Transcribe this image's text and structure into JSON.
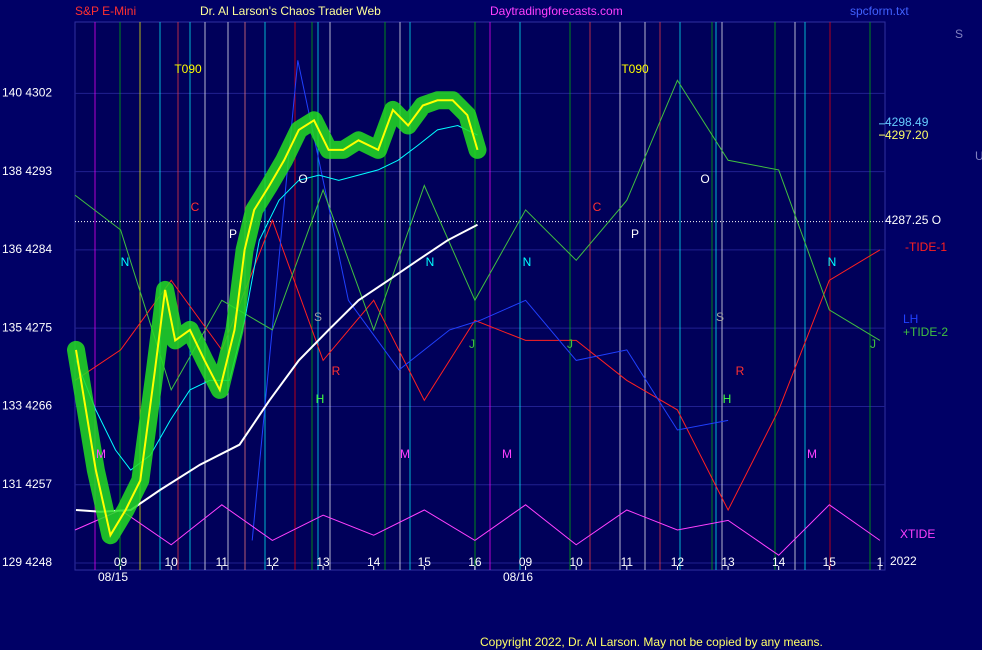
{
  "chart_data": {
    "type": "line",
    "header": [
      "S&P E-Mini",
      "Dr. Al Larson's Chaos Trader Web",
      "Daytradingforecasts.com",
      "spcform.txt"
    ],
    "copyright": "Copyright 2022, Dr. Al Larson. May not be copied by any means.",
    "xlim": [
      8.1,
      24.1
    ],
    "xticks": [
      {
        "value": 9,
        "label": "09"
      },
      10,
      11,
      12,
      13,
      14,
      15,
      16,
      {
        "value": 17,
        "label": "09"
      },
      {
        "value": 18,
        "label": "10"
      },
      {
        "value": 19,
        "label": "11"
      },
      {
        "value": 20,
        "label": "12"
      },
      {
        "value": 21,
        "label": "13"
      },
      {
        "value": 22,
        "label": "14"
      },
      {
        "value": 23,
        "label": "15"
      },
      {
        "value": 24,
        "label": "1"
      }
    ],
    "dates": [
      "08/15",
      "08/16"
    ],
    "year": "2022",
    "ylim": [
      4247.2,
      4310.2
    ],
    "yticks": [
      {
        "value": 4302,
        "label": "140  4302"
      },
      {
        "value": 4293,
        "label": "138  4293"
      },
      {
        "value": 4284,
        "label": "136  4284"
      },
      {
        "value": 4275,
        "label": "135  4275"
      },
      {
        "value": 4266,
        "label": "133  4266"
      },
      {
        "value": 4257,
        "label": "131  4257"
      },
      {
        "value": 4248,
        "label": "129  4248"
      }
    ],
    "grid": true,
    "levels": [
      {
        "value": 4298.49,
        "label": "4298.49",
        "color": "#66ccff"
      },
      {
        "value": 4297.2,
        "label": "4297.20",
        "color": "#ffff66"
      },
      {
        "value": 4287.25,
        "label": "4287.25 O",
        "color": "#ffffff"
      }
    ],
    "annotations": [
      "T090",
      "T090",
      "C",
      "C",
      "P",
      "P",
      "O",
      "O",
      "N",
      "N",
      "N",
      "N",
      "S",
      "S",
      "R",
      "R",
      "H",
      "H",
      "M",
      "M",
      "M",
      "M",
      "J",
      "J",
      "J"
    ],
    "side_labels": [
      "S",
      "U"
    ],
    "series": [
      {
        "color": "#ffff00",
        "glow": "#22dd22",
        "x": [
          8.12,
          8.51,
          8.8,
          9.1,
          9.39,
          9.68,
          9.88,
          10.08,
          10.37,
          10.66,
          10.96,
          11.25,
          11.45,
          11.64,
          11.94,
          12.23,
          12.52,
          12.82,
          13.11,
          13.4,
          13.7,
          14.09,
          14.38,
          14.68,
          14.97,
          15.26,
          15.56,
          15.85,
          16.05
        ],
        "values": [
          4272.5,
          4258.7,
          4251.2,
          4254.1,
          4257.5,
          4270.2,
          4279.4,
          4273.6,
          4274.8,
          4271.3,
          4267.9,
          4274.8,
          4284.0,
          4288.6,
          4291.4,
          4294.3,
          4297.8,
          4298.9,
          4295.5,
          4295.5,
          4296.6,
          4295.5,
          4300.1,
          4298.3,
          4300.6,
          4301.2,
          4301.2,
          4299.5,
          4295.5
        ]
      },
      {
        "color": "#00ffff",
        "x": [
          8.12,
          8.51,
          8.9,
          9.2,
          9.59,
          9.98,
          10.37,
          10.76,
          11.15,
          11.45,
          11.74,
          12.13,
          12.52,
          12.92,
          13.31,
          13.7,
          14.09,
          14.48,
          14.87,
          15.26,
          15.66,
          16.05
        ],
        "values": [
          4271.3,
          4265.6,
          4261.0,
          4258.7,
          4260.4,
          4264.4,
          4267.9,
          4269.0,
          4269.0,
          4275.9,
          4285.1,
          4289.7,
          4292.0,
          4292.6,
          4292.0,
          4292.6,
          4293.2,
          4294.3,
          4296.0,
          4297.8,
          4298.3,
          4297.2
        ]
      },
      {
        "color": "#ffffff",
        "x": [
          8.12,
          8.61,
          9.2,
          9.78,
          10.57,
          11.35,
          11.94,
          12.52,
          13.11,
          13.7,
          14.29,
          14.87,
          15.46,
          16.05
        ],
        "values": [
          4254.1,
          4253.9,
          4254.1,
          4256.4,
          4259.3,
          4261.6,
          4266.7,
          4271.3,
          4274.8,
          4278.2,
          4280.5,
          4282.8,
          4285.1,
          4286.9
        ]
      },
      {
        "name": "-TIDE-1",
        "color": "#ff2020",
        "x": [
          8.1,
          9,
          10,
          11,
          12,
          13,
          14,
          15,
          16,
          17,
          18,
          19,
          20,
          21,
          22,
          23,
          24
        ],
        "values": [
          4269.0,
          4272.5,
          4280.5,
          4272.5,
          4287.4,
          4271.3,
          4278.2,
          4266.7,
          4275.9,
          4273.6,
          4273.6,
          4269.0,
          4265.6,
          4254.1,
          4265.6,
          4280.5,
          4284.0
        ]
      },
      {
        "name": "LH",
        "color": "#2040ff",
        "x": [
          11.6,
          12.5,
          13.5,
          14.5,
          15.5,
          16.1,
          17,
          18,
          19,
          20,
          21
        ],
        "values": [
          4250.6,
          4305.8,
          4278.2,
          4270.2,
          4274.8,
          4275.9,
          4278.2,
          4271.3,
          4272.5,
          4263.3,
          4264.4
        ]
      },
      {
        "name": "+TIDE-2",
        "color": "#40c040",
        "x": [
          8.1,
          9,
          10,
          11,
          12,
          13,
          14,
          15,
          16,
          17,
          18,
          19,
          20,
          21,
          22,
          23,
          24
        ],
        "values": [
          4290.3,
          4286.3,
          4267.9,
          4278.2,
          4274.8,
          4290.9,
          4274.8,
          4291.4,
          4278.2,
          4288.6,
          4282.8,
          4289.7,
          4303.5,
          4294.3,
          4293.2,
          4277.1,
          4273.6
        ]
      },
      {
        "name": "XTIDE",
        "color": "#ff40ff",
        "x": [
          8.1,
          9,
          10,
          11,
          12,
          13,
          14,
          15,
          16,
          17,
          18,
          19,
          20,
          21,
          22,
          23,
          24
        ],
        "values": [
          4251.8,
          4254.1,
          4250.1,
          4254.7,
          4250.6,
          4253.5,
          4251.2,
          4254.1,
          4250.6,
          4254.7,
          4250.1,
          4254.1,
          4251.8,
          4252.9,
          4248.9,
          4254.7,
          4250.6
        ]
      }
    ]
  }
}
